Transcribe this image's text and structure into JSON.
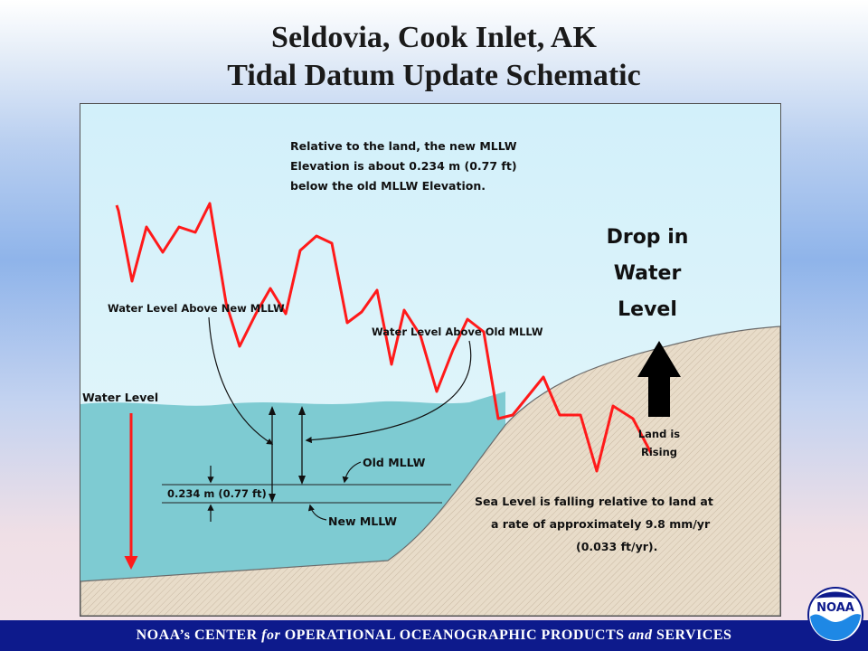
{
  "header": {
    "title_line1": "Seldovia, Cook Inlet, AK",
    "title_line2": "Tidal Datum Update Schematic"
  },
  "diagram": {
    "top_note": [
      "Relative to the land, the new MLLW",
      "Elevation is about 0.234 m (0.77 ft)",
      "below the old MLLW Elevation."
    ],
    "drop_label": [
      "Drop in",
      "Water",
      "Level"
    ],
    "water_above_new": "Water Level Above New MLLW",
    "water_above_old": "Water Level Above Old MLLW",
    "water_level": "Water Level",
    "land_rising": [
      "Land is",
      "Rising"
    ],
    "old_mllw": "Old MLLW",
    "new_mllw": "New MLLW",
    "offset_label": "0.234 m (0.77 ft)",
    "sea_level_note": [
      "Sea Level is falling relative to land at",
      "a rate of approximately 9.8 mm/yr",
      "(0.033 ft/yr)."
    ],
    "colors": {
      "sky": "#d6f2fa",
      "water": "#7fcdd3",
      "land": "#e6dac8",
      "series": "#ff1a1a"
    }
  },
  "footer": {
    "part1": "NOAA’s CENTER ",
    "part2": "for",
    "part3": " OPERATIONAL OCEANOGRAPHIC PRODUCTS ",
    "part4": "and",
    "part5": " SERVICES",
    "logo_text": "NOAA"
  }
}
